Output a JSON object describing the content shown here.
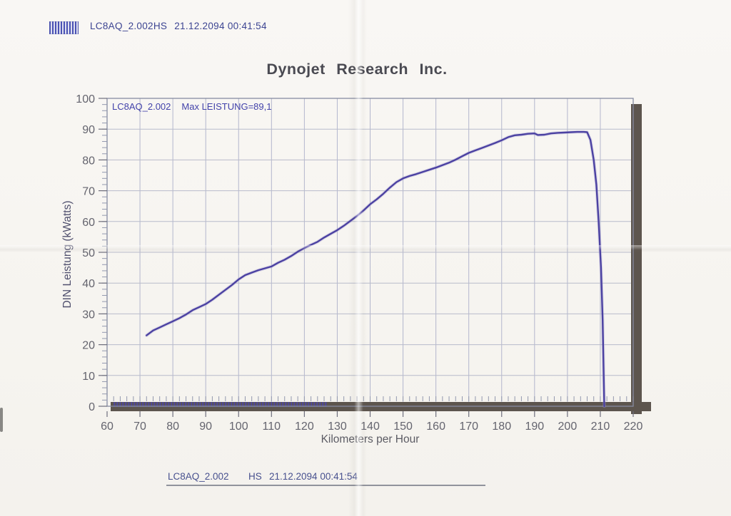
{
  "header": {
    "file_id": "LC8AQ_2.002HS",
    "timestamp": "21.12.2094 00:41:54"
  },
  "footer": {
    "run_name": "LC8AQ_2.002",
    "operator": "HS",
    "timestamp": "21.12.2094 00:41:54"
  },
  "icons": {
    "barcode": "barcode"
  },
  "chart_data": {
    "type": "line",
    "title": "Dynojet Research Inc.",
    "xlabel": "Kilometers per Hour",
    "ylabel": "DIN Leistung (kWatts)",
    "xlim": [
      60,
      220
    ],
    "ylim": [
      0,
      100
    ],
    "x_tick_step": 10,
    "y_tick_step": 10,
    "minor_tick_step": 2,
    "grid": true,
    "legend_position": "top-left",
    "legend": {
      "run": "LC8AQ_2.002",
      "max": "Max LEISTUNG=89,1"
    },
    "max_power_kw": "89,1",
    "colors": {
      "curve": "#4b41a2",
      "grid": "#b5b8cc",
      "frame_shadow": "#5d554e",
      "tick_text": "#64646e"
    },
    "series": [
      {
        "name": "LC8AQ_2.002",
        "color": "#4b41a2",
        "points": [
          [
            72,
            23.0
          ],
          [
            74,
            24.6
          ],
          [
            76,
            25.6
          ],
          [
            78,
            26.6
          ],
          [
            80,
            27.6
          ],
          [
            82,
            28.6
          ],
          [
            84,
            29.8
          ],
          [
            86,
            31.2
          ],
          [
            88,
            32.2
          ],
          [
            90,
            33.2
          ],
          [
            92,
            34.6
          ],
          [
            94,
            36.2
          ],
          [
            96,
            37.8
          ],
          [
            98,
            39.4
          ],
          [
            100,
            41.2
          ],
          [
            102,
            42.6
          ],
          [
            104,
            43.4
          ],
          [
            106,
            44.2
          ],
          [
            108,
            44.8
          ],
          [
            110,
            45.4
          ],
          [
            112,
            46.6
          ],
          [
            114,
            47.6
          ],
          [
            116,
            48.8
          ],
          [
            118,
            50.2
          ],
          [
            120,
            51.4
          ],
          [
            122,
            52.4
          ],
          [
            124,
            53.4
          ],
          [
            126,
            54.8
          ],
          [
            128,
            56.0
          ],
          [
            130,
            57.2
          ],
          [
            132,
            58.6
          ],
          [
            134,
            60.2
          ],
          [
            136,
            61.8
          ],
          [
            138,
            63.6
          ],
          [
            140,
            65.6
          ],
          [
            142,
            67.2
          ],
          [
            144,
            69.0
          ],
          [
            146,
            71.0
          ],
          [
            148,
            72.8
          ],
          [
            150,
            74.0
          ],
          [
            152,
            74.8
          ],
          [
            154,
            75.4
          ],
          [
            156,
            76.1
          ],
          [
            158,
            76.8
          ],
          [
            160,
            77.5
          ],
          [
            162,
            78.3
          ],
          [
            164,
            79.1
          ],
          [
            166,
            80.1
          ],
          [
            168,
            81.2
          ],
          [
            170,
            82.3
          ],
          [
            172,
            83.1
          ],
          [
            174,
            83.9
          ],
          [
            176,
            84.7
          ],
          [
            178,
            85.5
          ],
          [
            180,
            86.4
          ],
          [
            182,
            87.4
          ],
          [
            184,
            88.0
          ],
          [
            186,
            88.2
          ],
          [
            188,
            88.5
          ],
          [
            190,
            88.6
          ],
          [
            191,
            88.1
          ],
          [
            193,
            88.2
          ],
          [
            195,
            88.6
          ],
          [
            197,
            88.8
          ],
          [
            199,
            88.9
          ],
          [
            201,
            89.0
          ],
          [
            203,
            89.1
          ],
          [
            205,
            89.1
          ],
          [
            206,
            89.0
          ],
          [
            207,
            86.5
          ],
          [
            208,
            80.0
          ],
          [
            208.8,
            72.0
          ],
          [
            209.5,
            60.0
          ],
          [
            210.2,
            45.0
          ],
          [
            210.7,
            28.0
          ],
          [
            211.0,
            12.0
          ],
          [
            211.2,
            0
          ]
        ]
      }
    ],
    "zero_baseline_trace": {
      "from_kmh": 62,
      "to_kmh": 127,
      "kw": 0
    }
  }
}
